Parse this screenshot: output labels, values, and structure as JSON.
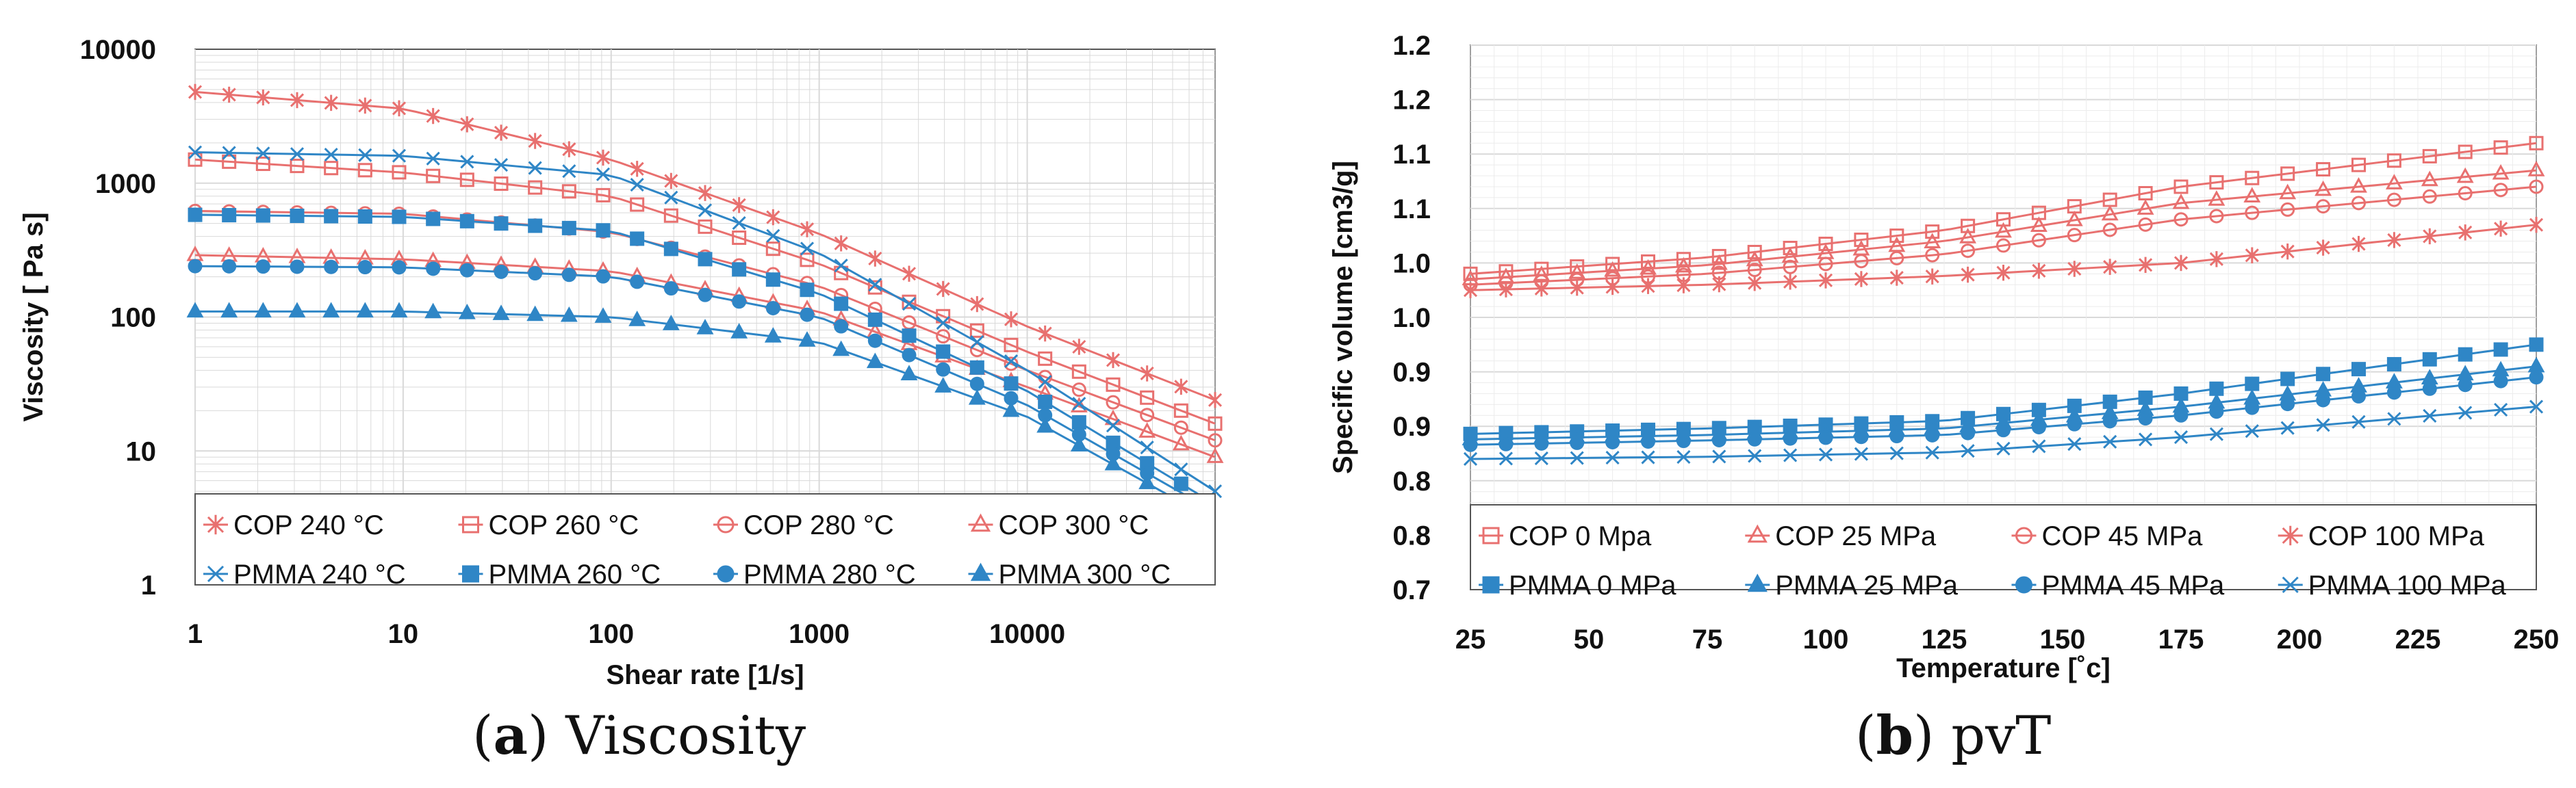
{
  "captions": [
    {
      "tag": "a",
      "text": "Viscosity"
    },
    {
      "tag": "b",
      "text": "pvT"
    }
  ],
  "colors": {
    "cop": "#e8706f",
    "pmma": "#2f86c6",
    "grid": "#d9d9d9",
    "axis": "#333333"
  },
  "chart_data": [
    {
      "type": "line",
      "xlabel": "Shear rate [1/s]",
      "ylabel": "Viscosity [ Pa s]",
      "xscale": "log",
      "yscale": "log",
      "xlim": [
        1,
        80000
      ],
      "ylim": [
        1,
        10000
      ],
      "xticks": [
        1,
        10,
        100,
        1000,
        10000
      ],
      "xtick_labels": [
        "1",
        "10",
        "100",
        "1000",
        "10000"
      ],
      "yticks": [
        1,
        10,
        100,
        1000,
        10000
      ],
      "ytick_labels": [
        "1",
        "10",
        "100",
        "1000",
        "10000"
      ],
      "grid": true,
      "legend": "bottom",
      "series": [
        {
          "name": "COP 240 °C",
          "group": "cop",
          "marker": "star",
          "x": [
            1,
            10,
            100,
            1000,
            10000,
            80000
          ],
          "y": [
            4800,
            3600,
            1500,
            420,
            85,
            24
          ]
        },
        {
          "name": "COP 260 °C",
          "group": "cop",
          "marker": "square-open",
          "x": [
            1,
            10,
            100,
            1000,
            10000,
            80000
          ],
          "y": [
            1500,
            1200,
            800,
            250,
            55,
            16
          ]
        },
        {
          "name": "COP 280 °C",
          "group": "cop",
          "marker": "circle-open",
          "x": [
            1,
            10,
            100,
            1000,
            10000,
            80000
          ],
          "y": [
            620,
            590,
            430,
            170,
            40,
            12
          ]
        },
        {
          "name": "COP 300 °C",
          "group": "cop",
          "marker": "triangle-open",
          "x": [
            1,
            10,
            100,
            1000,
            10000,
            80000
          ],
          "y": [
            290,
            270,
            220,
            110,
            30,
            9
          ]
        },
        {
          "name": "PMMA 240 °C",
          "group": "pmma",
          "marker": "x",
          "x": [
            1,
            10,
            100,
            1000,
            10000,
            80000
          ],
          "y": [
            1700,
            1600,
            1150,
            300,
            40,
            5
          ]
        },
        {
          "name": "PMMA 260 °C",
          "group": "pmma",
          "marker": "square",
          "x": [
            1,
            10,
            100,
            1000,
            10000,
            80000
          ],
          "y": [
            580,
            560,
            440,
            150,
            28,
            4
          ]
        },
        {
          "name": "PMMA 280 °C",
          "group": "pmma",
          "marker": "circle",
          "x": [
            1,
            10,
            100,
            1000,
            10000,
            80000
          ],
          "y": [
            240,
            235,
            200,
            100,
            22,
            3.5
          ]
        },
        {
          "name": "PMMA 300 °C",
          "group": "pmma",
          "marker": "triangle",
          "x": [
            1,
            10,
            100,
            1000,
            10000,
            80000
          ],
          "y": [
            110,
            110,
            100,
            65,
            18,
            3
          ]
        }
      ]
    },
    {
      "type": "line",
      "xlabel": "Temperature [˚c]",
      "ylabel": "Specific volume [cm3/g]",
      "xlim": [
        25,
        250
      ],
      "ylim": [
        0.7,
        1.2
      ],
      "xticks": [
        25,
        50,
        75,
        100,
        125,
        150,
        175,
        200,
        225,
        250
      ],
      "xtick_labels": [
        "25",
        "50",
        "75",
        "100",
        "125",
        "150",
        "175",
        "200",
        "225",
        "250"
      ],
      "yticks": [
        0.7,
        0.75,
        0.8,
        0.85,
        0.9,
        0.95,
        1.0,
        1.05,
        1.1,
        1.15,
        1.2
      ],
      "ytick_labels": [
        "0.7",
        "0.8",
        "0.8",
        "0.9",
        "0.9",
        "1.0",
        "1.0",
        "1.1",
        "1.1",
        "1.2",
        "1.2"
      ],
      "grid": true,
      "legend": "bottom",
      "series": [
        {
          "name": "COP 0 Mpa",
          "group": "cop",
          "marker": "square-open",
          "x": [
            25,
            75,
            125,
            175,
            250
          ],
          "y": [
            0.99,
            1.005,
            1.03,
            1.07,
            1.11
          ]
        },
        {
          "name": "COP 25 MPa",
          "group": "cop",
          "marker": "triangle-open",
          "x": [
            25,
            75,
            125,
            175,
            250
          ],
          "y": [
            0.985,
            0.998,
            1.02,
            1.055,
            1.085
          ]
        },
        {
          "name": "COP 45 MPa",
          "group": "cop",
          "marker": "circle-open",
          "x": [
            25,
            75,
            125,
            175,
            250
          ],
          "y": [
            0.98,
            0.99,
            1.008,
            1.04,
            1.07
          ]
        },
        {
          "name": "COP 100 MPa",
          "group": "cop",
          "marker": "star",
          "x": [
            25,
            75,
            125,
            175,
            250
          ],
          "y": [
            0.975,
            0.98,
            0.988,
            1.0,
            1.035
          ]
        },
        {
          "name": "PMMA 0 MPa",
          "group": "pmma",
          "marker": "square",
          "x": [
            25,
            75,
            125,
            175,
            250
          ],
          "y": [
            0.843,
            0.848,
            0.855,
            0.88,
            0.925
          ]
        },
        {
          "name": "PMMA 25 MPa",
          "group": "pmma",
          "marker": "triangle",
          "x": [
            25,
            75,
            125,
            175,
            250
          ],
          "y": [
            0.838,
            0.842,
            0.848,
            0.868,
            0.905
          ]
        },
        {
          "name": "PMMA 45 MPa",
          "group": "pmma",
          "marker": "circle",
          "x": [
            25,
            75,
            125,
            175,
            250
          ],
          "y": [
            0.833,
            0.837,
            0.842,
            0.86,
            0.895
          ]
        },
        {
          "name": "PMMA 100 MPa",
          "group": "pmma",
          "marker": "x",
          "x": [
            25,
            75,
            125,
            175,
            250
          ],
          "y": [
            0.82,
            0.822,
            0.826,
            0.84,
            0.868
          ]
        }
      ]
    }
  ]
}
